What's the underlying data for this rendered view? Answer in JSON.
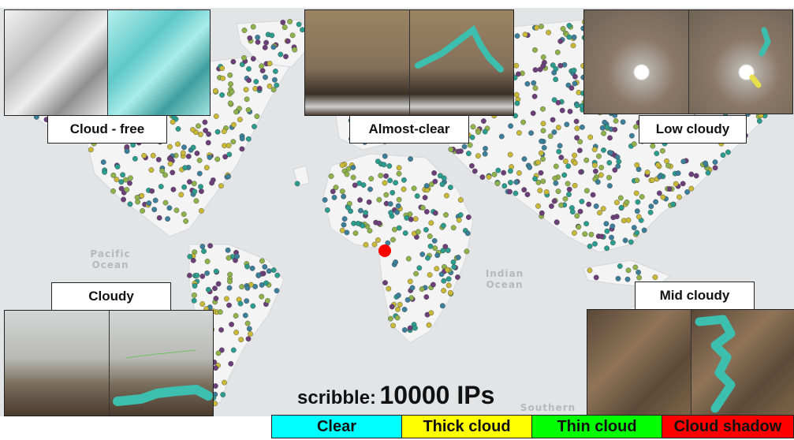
{
  "map": {
    "ocean_labels": [
      "Pacific\nOcean",
      "Indian\nOcean",
      "Southern"
    ],
    "point_colors": [
      "#2a9d8f",
      "#c9b937",
      "#6d3f7a",
      "#8fb34a",
      "#3c7f9a"
    ],
    "marker_color": "#ff0000"
  },
  "panels": [
    {
      "label": "Cloud - free",
      "left_color": "#d9d9d9",
      "right_color": "#8fdada"
    },
    {
      "label": "Almost-clear",
      "left_color": "#8a7356",
      "right_color": "#8d7759"
    },
    {
      "label": "Low cloudy",
      "left_color": "#8d7a66",
      "right_color": "#8b7a68"
    },
    {
      "label": "Cloudy",
      "left_color": "#a6a6a2",
      "right_color": "#a3a39f"
    },
    {
      "label": "Mid cloudy",
      "left_color": "#6e5a45",
      "right_color": "#6f5b46"
    }
  ],
  "caption": {
    "prefix": "scribble:",
    "count": "10000 IPs"
  },
  "legend": [
    {
      "label": "Clear",
      "color": "#00ffff"
    },
    {
      "label": "Thick cloud",
      "color": "#ffff00"
    },
    {
      "label": "Thin cloud",
      "color": "#00ff00"
    },
    {
      "label": "Cloud shadow",
      "color": "#ff0000"
    }
  ]
}
